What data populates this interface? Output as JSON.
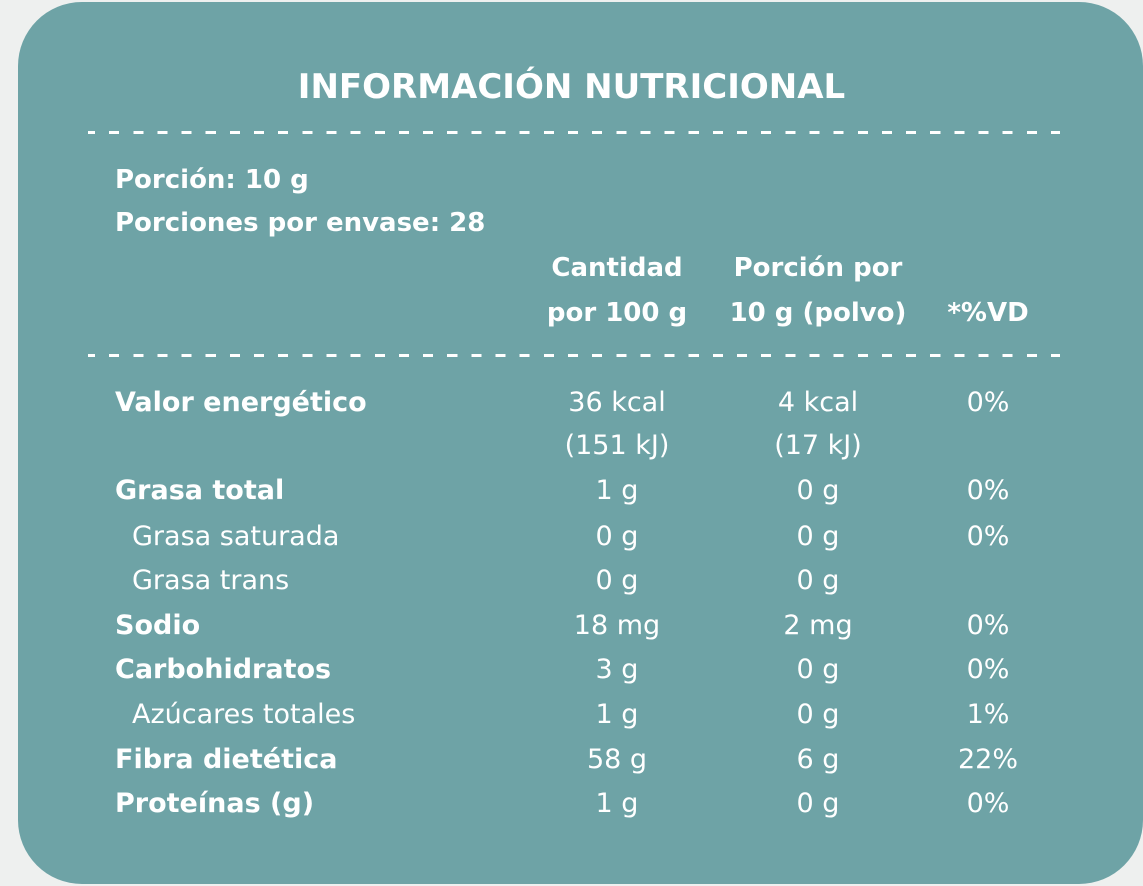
{
  "header": {
    "title": "INFORMACIÓN NUTRICIONAL"
  },
  "serving": [
    "Porción: 10 g",
    "Porciones por envase: 28"
  ],
  "columns": [
    [
      "Cantidad",
      "por 100 g"
    ],
    [
      "Porción por",
      "10 g (polvo)"
    ],
    [
      "*%VD"
    ]
  ],
  "rows": [
    {
      "label": "Valor energético",
      "sub": false,
      "values": [
        [
          "36 kcal",
          "(151 kJ)"
        ],
        [
          "4 kcal",
          "(17 kJ)"
        ],
        [
          "0%"
        ]
      ]
    },
    {
      "label": "Grasa total",
      "sub": false,
      "values": [
        [
          "1 g"
        ],
        [
          "0 g"
        ],
        [
          "0%"
        ]
      ]
    },
    {
      "label": "Grasa saturada",
      "sub": true,
      "values": [
        [
          "0 g"
        ],
        [
          "0 g"
        ],
        [
          "0%"
        ]
      ]
    },
    {
      "label": "Grasa trans",
      "sub": true,
      "values": [
        [
          "0 g"
        ],
        [
          "0 g"
        ],
        null
      ]
    },
    {
      "label": "Sodio",
      "sub": false,
      "values": [
        [
          "18 mg"
        ],
        [
          "2 mg"
        ],
        [
          "0%"
        ]
      ]
    },
    {
      "label": "Carbohidratos",
      "sub": false,
      "values": [
        [
          "3 g"
        ],
        [
          "0 g"
        ],
        [
          "0%"
        ]
      ]
    },
    {
      "label": "Azúcares totales",
      "sub": true,
      "values": [
        [
          "1 g"
        ],
        [
          "0 g"
        ],
        [
          "1%"
        ]
      ]
    },
    {
      "label": "Fibra dietética",
      "sub": false,
      "values": [
        [
          "58 g"
        ],
        [
          "6 g"
        ],
        [
          "22%"
        ]
      ]
    },
    {
      "label": "Proteínas (g)",
      "sub": false,
      "values": [
        [
          "1 g"
        ],
        [
          "0 g"
        ],
        [
          "0%"
        ]
      ]
    }
  ]
}
